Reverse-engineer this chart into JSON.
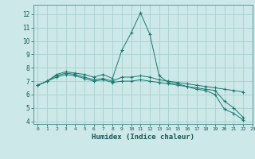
{
  "xlabel": "Humidex (Indice chaleur)",
  "bg_color": "#cce8e8",
  "grid_color": "#aacfcf",
  "line_color": "#1a7a6e",
  "xlim": [
    -0.5,
    23
  ],
  "ylim": [
    3.8,
    12.7
  ],
  "yticks": [
    4,
    5,
    6,
    7,
    8,
    9,
    10,
    11,
    12
  ],
  "xticks": [
    0,
    1,
    2,
    3,
    4,
    5,
    6,
    7,
    8,
    9,
    10,
    11,
    12,
    13,
    14,
    15,
    16,
    17,
    18,
    19,
    20,
    21,
    22,
    23
  ],
  "series": [
    [
      6.7,
      7.0,
      7.5,
      7.7,
      7.6,
      7.5,
      7.3,
      7.5,
      7.2,
      9.3,
      10.6,
      12.1,
      10.5,
      7.4,
      6.9,
      6.8,
      6.6,
      6.4,
      6.3,
      6.0,
      4.9,
      4.6,
      4.1
    ],
    [
      6.7,
      7.0,
      7.4,
      7.6,
      7.5,
      7.3,
      7.1,
      7.2,
      7.0,
      7.3,
      7.3,
      7.4,
      7.3,
      7.1,
      7.0,
      6.9,
      6.8,
      6.7,
      6.6,
      6.5,
      6.4,
      6.3,
      6.2
    ],
    [
      6.7,
      7.0,
      7.3,
      7.5,
      7.4,
      7.2,
      7.0,
      7.1,
      6.9,
      7.0,
      7.0,
      7.1,
      7.0,
      6.9,
      6.8,
      6.7,
      6.6,
      6.5,
      6.4,
      6.3,
      5.5,
      5.0,
      4.3
    ]
  ]
}
